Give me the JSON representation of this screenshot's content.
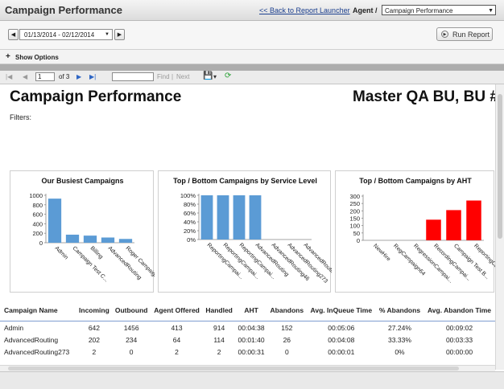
{
  "header": {
    "title": "Campaign Performance",
    "back_link": "<< Back to Report Launcher",
    "agent_label": "Agent /",
    "agent_value": "Campaign Performance"
  },
  "date_range": "01/13/2014 - 02/12/2014",
  "run_report": "Run Report",
  "show_options": "Show Options",
  "viewer": {
    "page": "1",
    "of_pages": "of 3",
    "find": "Find",
    "next": "Next"
  },
  "report": {
    "title": "Campaign Performance",
    "bu": "Master QA BU, BU #",
    "filters": "Filters:"
  },
  "charts": [
    {
      "title": "Our Busiest Campaigns",
      "color": "#5b9bd5"
    },
    {
      "title": "Top  / Bottom  Campaigns by Service Level",
      "color": "#5b9bd5"
    },
    {
      "title": "Top  / Bottom  Campaigns by AHT",
      "color": "#ff0000"
    }
  ],
  "chart_data": [
    {
      "type": "bar",
      "title": "Our Busiest Campaigns",
      "categories": [
        "Admin",
        "Campaign Test C...",
        "Billing",
        "AdvancedRouting",
        "Roger Campaign"
      ],
      "values": [
        930,
        170,
        150,
        110,
        80
      ],
      "ylim": [
        0,
        1000
      ],
      "yticks": [
        "0",
        "200",
        "400",
        "600",
        "800",
        "1000"
      ]
    },
    {
      "type": "bar",
      "title": "Top  / Bottom  Campaigns by Service Level",
      "categories": [
        "ReportingCampai...",
        "ReportingCampai...",
        "ReportingCampai...",
        "AdvancedRouting",
        "AdvancedRouting46",
        "AdvancedRouting273",
        "AdvancedRouting271"
      ],
      "values": [
        100,
        100,
        100,
        100,
        0,
        0,
        0
      ],
      "ylim": [
        0,
        100
      ],
      "yticks": [
        "0%",
        "20%",
        "40%",
        "60%",
        "80%",
        "100%"
      ]
    },
    {
      "type": "bar",
      "title": "Top  / Bottom  Campaigns by AHT",
      "categories": [
        "NewHire",
        "RegCampaign64",
        "RegressionCampai...",
        "RecordingCampai...",
        "Campaign Test B...",
        "ReportingCampai..."
      ],
      "values": [
        0,
        0,
        0,
        140,
        205,
        270
      ],
      "ylim": [
        0,
        300
      ],
      "yticks": [
        "0",
        "50",
        "100",
        "150",
        "200",
        "250",
        "300"
      ]
    }
  ],
  "table": {
    "columns": [
      "Campaign Name",
      "Incoming",
      "Outbound",
      "Agent Offered",
      "Handled",
      "AHT",
      "Abandons",
      "Avg. InQueue Time",
      "% Abandons",
      "Avg. Abandon Time"
    ],
    "rows": [
      [
        "Admin",
        "642",
        "1456",
        "413",
        "914",
        "00:04:38",
        "152",
        "00:05:06",
        "27.24%",
        "00:09:02"
      ],
      [
        "AdvancedRouting",
        "202",
        "234",
        "64",
        "114",
        "00:01:40",
        "26",
        "00:04:08",
        "33.33%",
        "00:03:33"
      ],
      [
        "AdvancedRouting273",
        "2",
        "0",
        "2",
        "2",
        "00:00:31",
        "0",
        "00:00:01",
        "0%",
        "00:00:00"
      ]
    ]
  }
}
